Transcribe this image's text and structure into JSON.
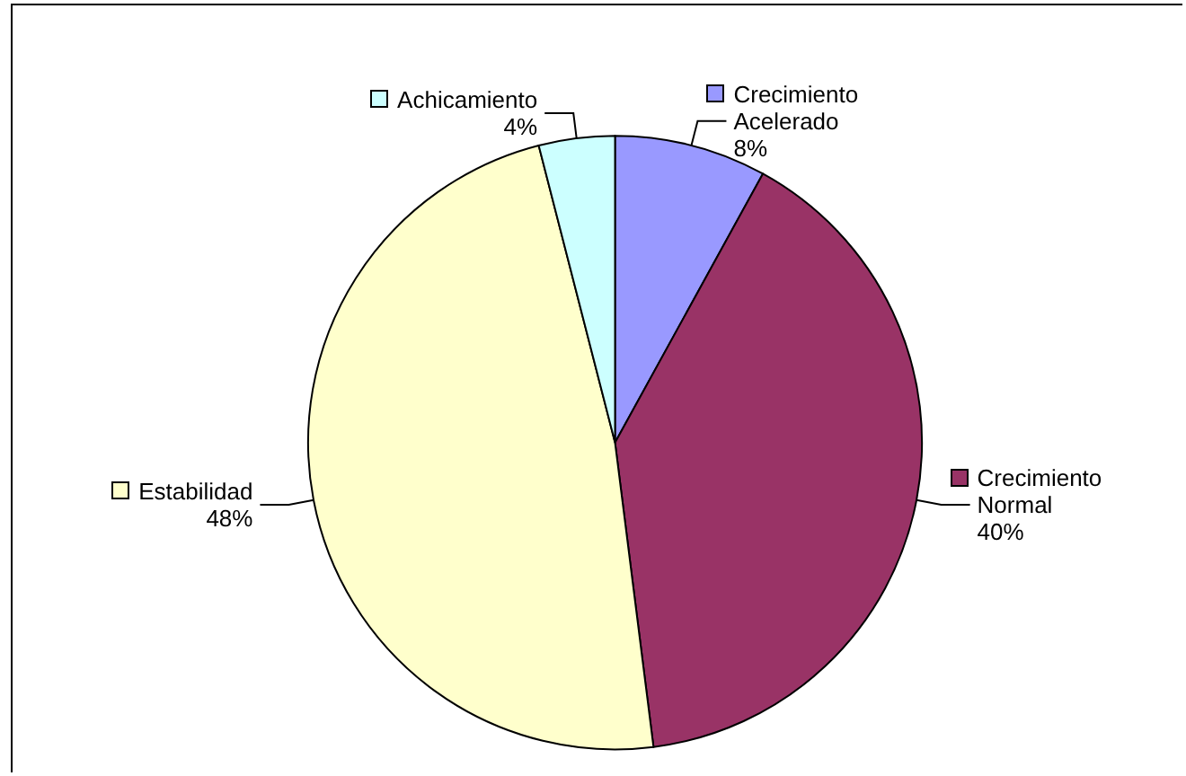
{
  "chart_data": {
    "type": "pie",
    "categories": [
      "Crecimiento Acelerado",
      "Crecimiento Normal",
      "Estabilidad",
      "Achicamiento"
    ],
    "values": [
      8,
      40,
      48,
      4
    ],
    "value_labels": [
      "8%",
      "40%",
      "48%",
      "4%"
    ],
    "colors": [
      "#9999ff",
      "#993366",
      "#ffffcc",
      "#ccffff"
    ],
    "legend": "top"
  }
}
